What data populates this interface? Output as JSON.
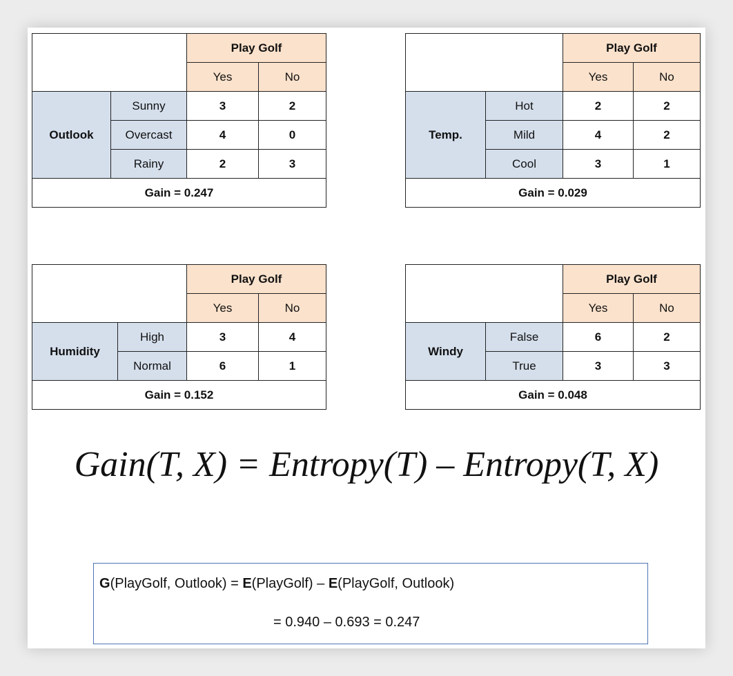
{
  "tables": [
    {
      "header": "Play Golf",
      "col_yes": "Yes",
      "col_no": "No",
      "attribute": "Outlook",
      "rows": [
        {
          "label": "Sunny",
          "yes": "3",
          "no": "2"
        },
        {
          "label": "Overcast",
          "yes": "4",
          "no": "0"
        },
        {
          "label": "Rainy",
          "yes": "2",
          "no": "3"
        }
      ],
      "gain": "Gain = 0.247"
    },
    {
      "header": "Play Golf",
      "col_yes": "Yes",
      "col_no": "No",
      "attribute": "Temp.",
      "rows": [
        {
          "label": "Hot",
          "yes": "2",
          "no": "2"
        },
        {
          "label": "Mild",
          "yes": "4",
          "no": "2"
        },
        {
          "label": "Cool",
          "yes": "3",
          "no": "1"
        }
      ],
      "gain": "Gain = 0.029"
    },
    {
      "header": "Play Golf",
      "col_yes": "Yes",
      "col_no": "No",
      "attribute": "Humidity",
      "rows": [
        {
          "label": "High",
          "yes": "3",
          "no": "4"
        },
        {
          "label": "Normal",
          "yes": "6",
          "no": "1"
        }
      ],
      "gain": "Gain = 0.152"
    },
    {
      "header": "Play Golf",
      "col_yes": "Yes",
      "col_no": "No",
      "attribute": "Windy",
      "rows": [
        {
          "label": "False",
          "yes": "6",
          "no": "2"
        },
        {
          "label": "True",
          "yes": "3",
          "no": "3"
        }
      ],
      "gain": "Gain = 0.048"
    }
  ],
  "formula": "Gain(T, X) = Entropy(T) – Entropy(T, X)",
  "calc": {
    "g": "G",
    "g_args": "(PlayGolf, Outlook) = ",
    "e1": "E",
    "e1_args": "(PlayGolf) – ",
    "e2": "E",
    "e2_args": "(PlayGolf, Outlook)",
    "line2": "= 0.940 – 0.693 = 0.247"
  },
  "colors": {
    "header_fill": "#fbe2cc",
    "attribute_fill": "#d5dfec",
    "box_border": "#4e74b3"
  }
}
